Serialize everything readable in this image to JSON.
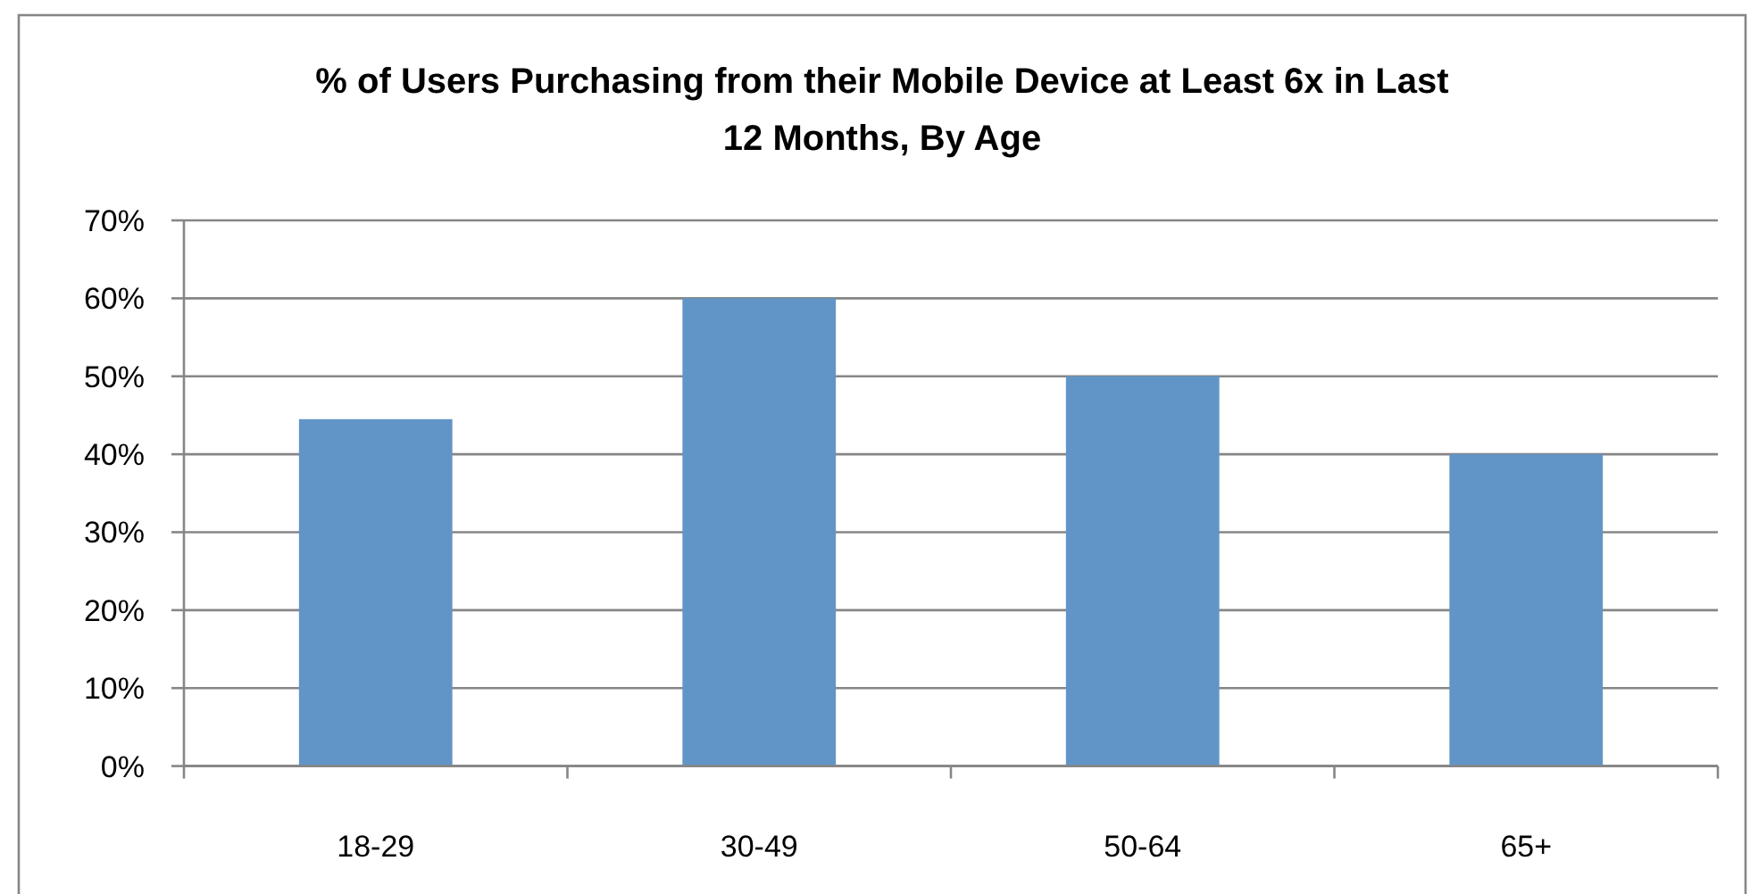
{
  "chart_data": {
    "type": "bar",
    "title": "% of Users Purchasing from their Mobile Device at Least 6x in Last 12 Months, By Age",
    "categories": [
      "18-29",
      "30-49",
      "50-64",
      "65+"
    ],
    "values": [
      44.5,
      60,
      50,
      40
    ],
    "color": "#6195c8",
    "ylim": [
      0,
      70
    ],
    "yticks": [
      {
        "value": 0,
        "label": "0%"
      },
      {
        "value": 10,
        "label": "10%"
      },
      {
        "value": 20,
        "label": "20%"
      },
      {
        "value": 30,
        "label": "30%"
      },
      {
        "value": 40,
        "label": "40%"
      },
      {
        "value": 50,
        "label": "50%"
      },
      {
        "value": 60,
        "label": "60%"
      },
      {
        "value": 70,
        "label": "70%"
      }
    ],
    "grid": "y"
  }
}
